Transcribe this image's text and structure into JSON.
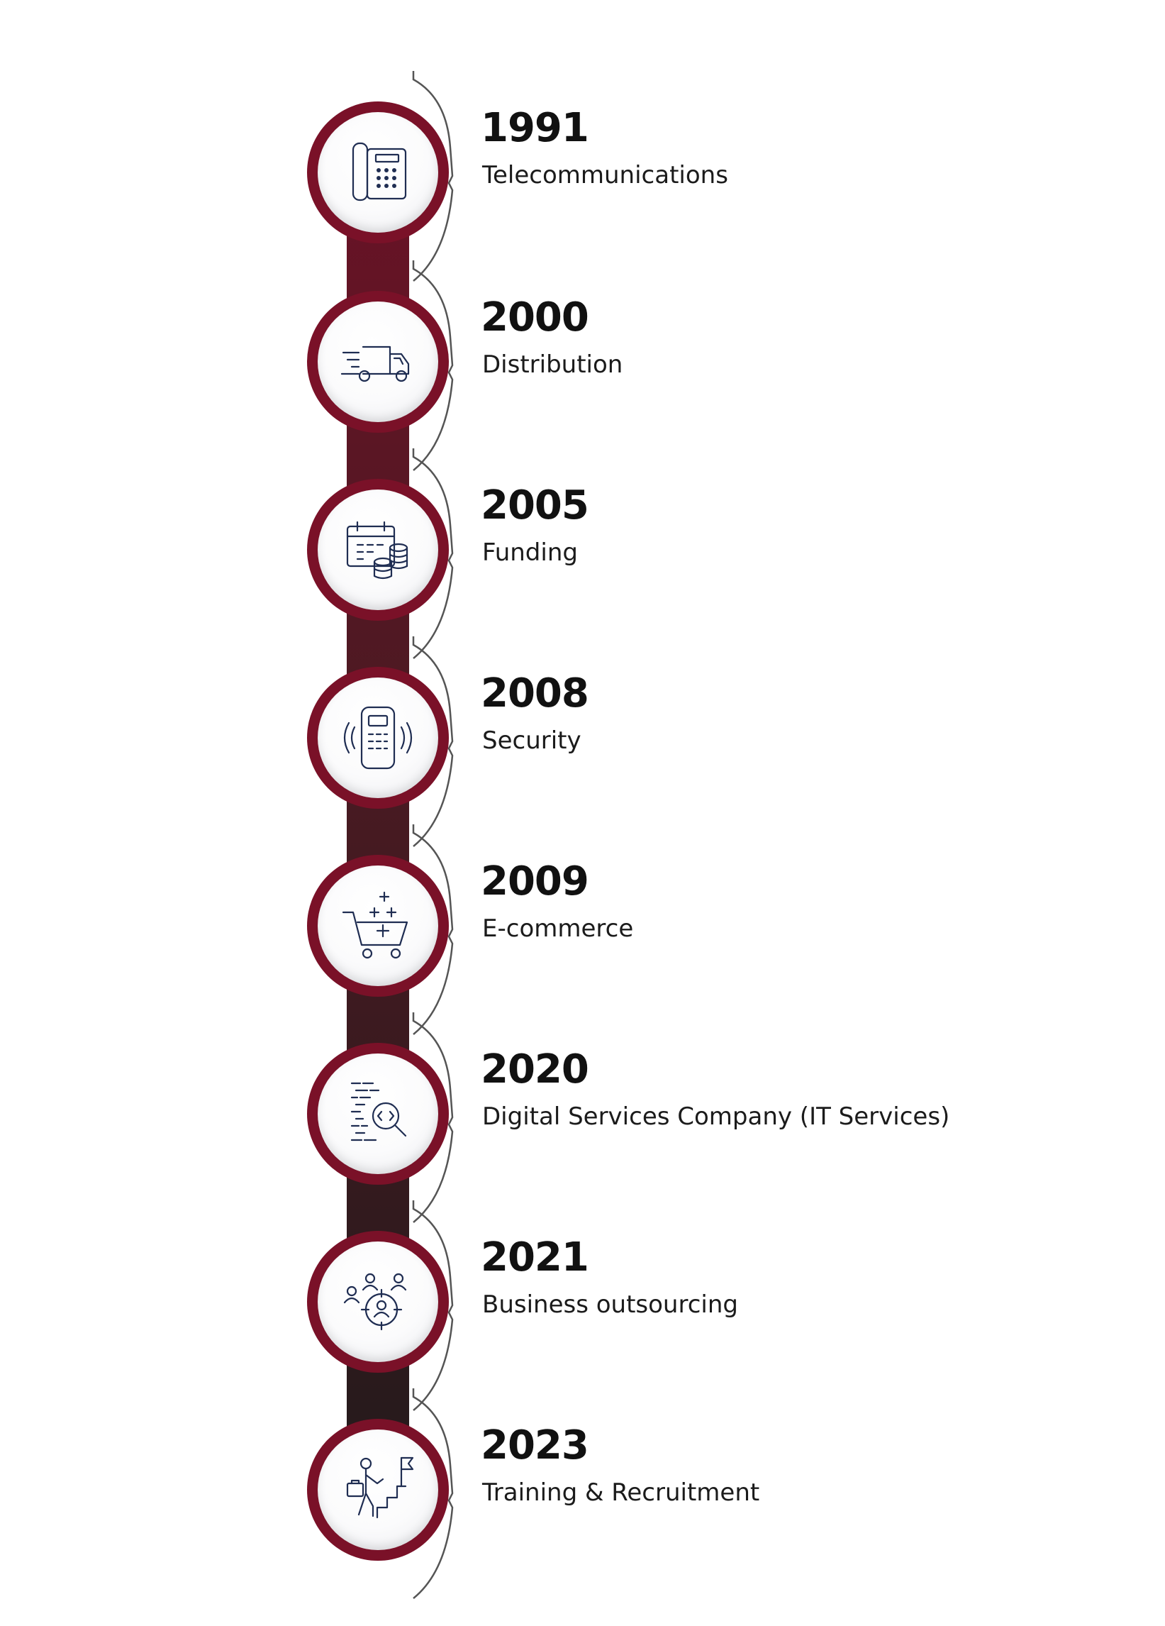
{
  "colors": {
    "ring": "#7a1128",
    "bar_top": "#6a1226",
    "bar_bottom": "#241a1b",
    "icon": "#1f2d52",
    "text": "#111111"
  },
  "milestones": [
    {
      "year": "1991",
      "label": "Telecommunications",
      "icon": "desk-phone-icon"
    },
    {
      "year": "2000",
      "label": "Distribution",
      "icon": "delivery-truck-icon"
    },
    {
      "year": "2005",
      "label": "Funding",
      "icon": "calendar-coins-icon"
    },
    {
      "year": "2008",
      "label": "Security",
      "icon": "keypad-device-icon"
    },
    {
      "year": "2009",
      "label": "E-commerce",
      "icon": "shopping-cart-icon"
    },
    {
      "year": "2020",
      "label": "Digital Services Company (IT Services)",
      "icon": "code-search-icon"
    },
    {
      "year": "2021",
      "label": "Business outsourcing",
      "icon": "target-people-icon"
    },
    {
      "year": "2023",
      "label": "Training & Recruitment",
      "icon": "career-steps-icon"
    }
  ]
}
